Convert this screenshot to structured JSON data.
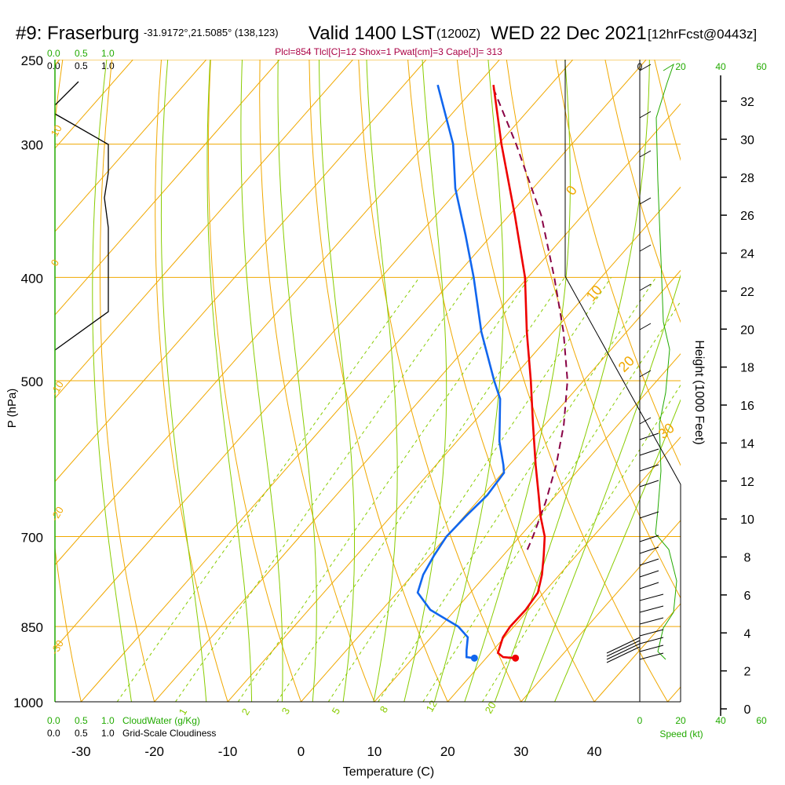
{
  "header": {
    "site": "#9: Fraserburg",
    "coords": "-31.9172°,21.5085° (138,123)",
    "valid": "Valid 1400 LST",
    "zulu": "(1200Z)",
    "date": "WED 22 Dec 2021",
    "forecast": "[12hrFcst@0443z]",
    "indices": "Plcl=854 Tlcl[C]=12 Shox=1 Pwat[cm]=3 Cape[J]= 313"
  },
  "colors": {
    "isotherm": "#f0a800",
    "dry_adiabat": "#f0a800",
    "moist_adiabat": "#88cc00",
    "mixing_ratio": "#88cc00",
    "temperature": "#ee0000",
    "dewpoint": "#1166ee",
    "parcel": "#880044",
    "cloud_green": "#22aa00",
    "index_text": "#aa0044"
  },
  "top_scales": {
    "cloudwater_ticks": [
      "0.0",
      "0.5",
      "1.0"
    ],
    "cloudiness_ticks": [
      "0.0",
      "0.5",
      "1.0"
    ]
  },
  "bottom_scales": {
    "cloudwater_label": "CloudWater (g/Kg)",
    "cloudiness_label": "Grid-Scale Cloudiness",
    "cloudwater_ticks": [
      "0.0",
      "0.5",
      "1.0"
    ],
    "cloudiness_ticks": [
      "0.0",
      "0.5",
      "1.0"
    ]
  },
  "wind_panel": {
    "speed_label": "Speed (kt)",
    "ticks_black": [
      "0",
      "20"
    ],
    "ticks_green": [
      "20",
      "40",
      "60"
    ]
  },
  "chart_data": {
    "type": "skew-T log-P sounding",
    "xlabel": "Temperature (C)",
    "ylabel": "P (hPa)",
    "y2label": "Height (1000 Feet)",
    "x_ticks": [
      -30,
      -20,
      -10,
      0,
      10,
      20,
      30,
      40
    ],
    "p_ticks": [
      250,
      300,
      400,
      500,
      700,
      850,
      1000
    ],
    "height_ticks": [
      0,
      2,
      4,
      6,
      8,
      10,
      12,
      14,
      16,
      18,
      20,
      22,
      24,
      26,
      28,
      30,
      32
    ],
    "xlim": [
      -34,
      36
    ],
    "plim": [
      1000,
      250
    ],
    "dry_adiabat_labels": [
      "-30",
      "-20",
      "-10",
      "0",
      "10",
      "0",
      "10",
      "20",
      "30"
    ],
    "mixing_ratio_labels": [
      "1",
      "2",
      "3",
      "5",
      "8",
      "12",
      "20"
    ],
    "temperature": [
      {
        "p": 910,
        "t": 24.0
      },
      {
        "p": 908,
        "t": 22.2
      },
      {
        "p": 900,
        "t": 21.0
      },
      {
        "p": 870,
        "t": 19.8
      },
      {
        "p": 850,
        "t": 19.5
      },
      {
        "p": 820,
        "t": 19.6
      },
      {
        "p": 790,
        "t": 19.2
      },
      {
        "p": 760,
        "t": 17.6
      },
      {
        "p": 730,
        "t": 15.6
      },
      {
        "p": 700,
        "t": 13.4
      },
      {
        "p": 670,
        "t": 10.4
      },
      {
        "p": 640,
        "t": 7.6
      },
      {
        "p": 600,
        "t": 3.6
      },
      {
        "p": 550,
        "t": -1.6
      },
      {
        "p": 500,
        "t": -7.2
      },
      {
        "p": 450,
        "t": -13.6
      },
      {
        "p": 400,
        "t": -20.4
      },
      {
        "p": 350,
        "t": -29.2
      },
      {
        "p": 300,
        "t": -39.6
      },
      {
        "p": 264,
        "t": -47.8
      }
    ],
    "dewpoint": [
      {
        "p": 910,
        "t": 18.4
      },
      {
        "p": 908,
        "t": 17.2
      },
      {
        "p": 895,
        "t": 16.4
      },
      {
        "p": 870,
        "t": 15.0
      },
      {
        "p": 850,
        "t": 12.4
      },
      {
        "p": 820,
        "t": 6.6
      },
      {
        "p": 790,
        "t": 2.8
      },
      {
        "p": 760,
        "t": 1.4
      },
      {
        "p": 730,
        "t": 0.6
      },
      {
        "p": 700,
        "t": 0.0
      },
      {
        "p": 670,
        "t": 0.2
      },
      {
        "p": 640,
        "t": 0.6
      },
      {
        "p": 610,
        "t": 0.2
      },
      {
        "p": 600,
        "t": -0.8
      },
      {
        "p": 570,
        "t": -4.2
      },
      {
        "p": 520,
        "t": -9.2
      },
      {
        "p": 500,
        "t": -12.2
      },
      {
        "p": 450,
        "t": -19.8
      },
      {
        "p": 400,
        "t": -27.4
      },
      {
        "p": 365,
        "t": -33.6
      },
      {
        "p": 330,
        "t": -40.6
      },
      {
        "p": 300,
        "t": -46.2
      },
      {
        "p": 264,
        "t": -55.4
      }
    ],
    "parcel": [
      {
        "p": 720,
        "t": 12.6
      },
      {
        "p": 700,
        "t": 11.8
      },
      {
        "p": 650,
        "t": 9.4
      },
      {
        "p": 600,
        "t": 6.4
      },
      {
        "p": 550,
        "t": 2.6
      },
      {
        "p": 500,
        "t": -2.2
      },
      {
        "p": 450,
        "t": -8.6
      },
      {
        "p": 400,
        "t": -16.4
      },
      {
        "p": 350,
        "t": -25.6
      },
      {
        "p": 300,
        "t": -37.6
      },
      {
        "p": 264,
        "t": -48.0
      }
    ],
    "surface_temperature": 24.0,
    "surface_dewpoint": 18.4,
    "surface_pressure": 910
  }
}
